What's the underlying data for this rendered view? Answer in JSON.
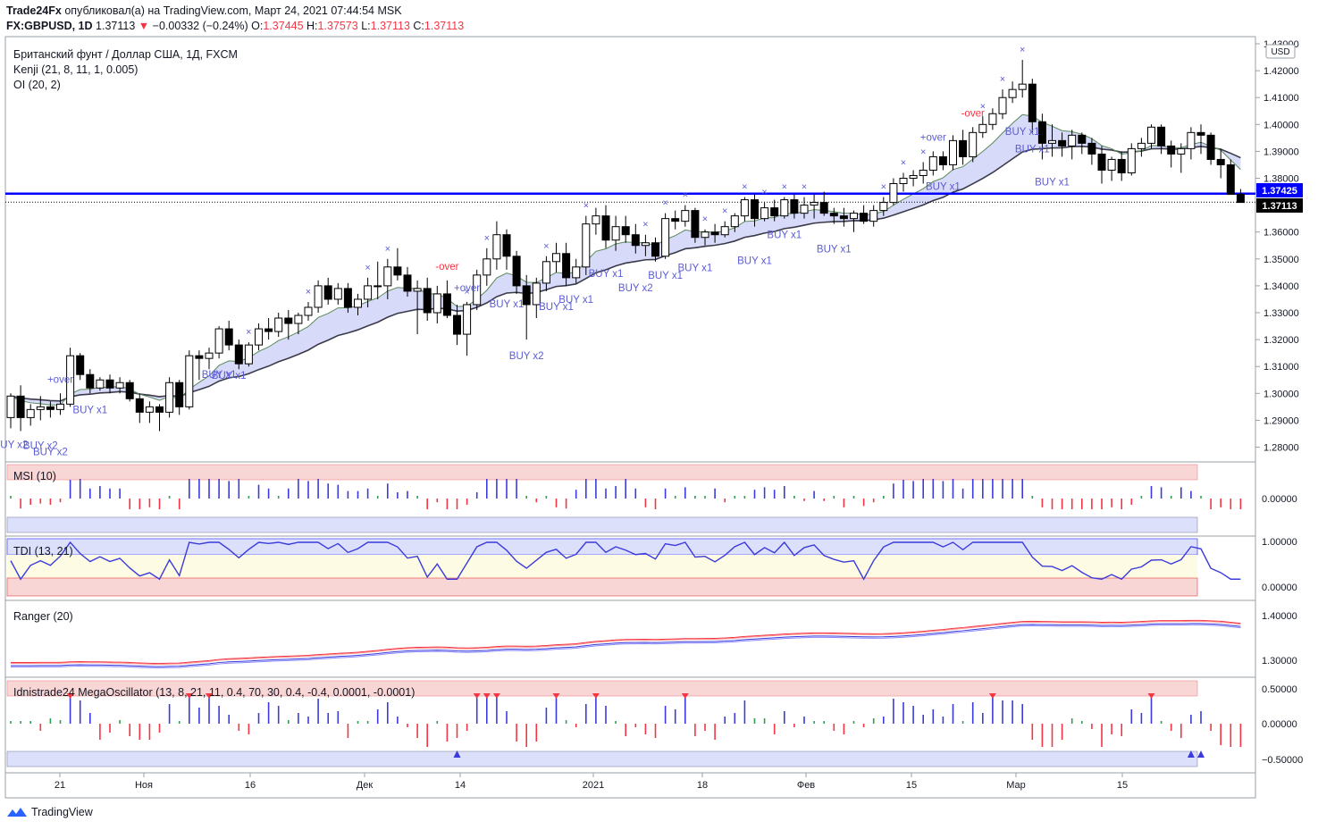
{
  "header": {
    "author": "Trade24Fx",
    "published_text": "опубликовал(а) на TradingView.com, Март 24, 2021 07:44:54 MSK",
    "symbol": "FX:GBPUSD, 1D",
    "last": "1.37113",
    "change": "−0.00332 (−0.24%)",
    "open_label": "O:",
    "open": "1.37445",
    "high_label": "H:",
    "high": "1.37573",
    "low_label": "L:",
    "low": "1.37113",
    "close_label": "C:",
    "close": "1.37113"
  },
  "legend": {
    "title": "Британский фунт / Доллар США, 1Д, FXCM",
    "kenji": "Kenji (21, 8, 11, 1, 0.005)",
    "oi": "OI (20, 2)"
  },
  "panes": {
    "msi": "MSI (10)",
    "tdi": "TDI (13, 21)",
    "ranger": "Ranger (20)",
    "mega": "Idnistrade24 MegaOscillator (13, 8, 21, 11, 0.4, 70, 30, 0.4, -0.4, 0.0001, -0.0001)"
  },
  "price_axis": {
    "currency": "USD",
    "ticks": [
      "1.43000",
      "1.42000",
      "1.41000",
      "1.40000",
      "1.39000",
      "1.38000",
      "1.36000",
      "1.35000",
      "1.34000",
      "1.33000",
      "1.32000",
      "1.31000",
      "1.30000",
      "1.29000",
      "1.28000"
    ],
    "level_label": "1.37425",
    "last_label": "1.37113"
  },
  "msi_axis": [
    "0.00000"
  ],
  "tdi_axis": [
    "1.00000",
    "0.00000"
  ],
  "ranger_axis": [
    "1.40000",
    "1.30000"
  ],
  "mega_axis": [
    "0.50000",
    "0.00000",
    "−0.50000"
  ],
  "time_axis": [
    "21",
    "Ноя",
    "16",
    "Дек",
    "14",
    "2021",
    "18",
    "Фев",
    "15",
    "Мар",
    "15"
  ],
  "signals": [
    "BUY x2",
    "BUY x2",
    "BUY x2",
    "BUY x1",
    "BUY x1",
    "+over",
    "BUY x1",
    "-over",
    "BUY x1",
    "BUY x2",
    "+over",
    "BUY x1",
    "BUY x1",
    "BUY x1",
    "BUY x2",
    "BUY x1",
    "BUY x1",
    "BUY x1",
    "BUY x1",
    "BUY x1",
    "+over",
    "BUY x1",
    "-over",
    "BUY x1",
    "BUY x1",
    "BUY x1"
  ],
  "brand": "TradingView",
  "colors": {
    "bull": "#ffffff",
    "bear": "#000000",
    "kenji_band": "#c9cdf5",
    "level": "#0000ff",
    "buy": "#5b5bd6",
    "red": "#f23645",
    "green": "#2e9e4f",
    "blue_bar": "#3b3bdb"
  },
  "chart_data": {
    "type": "candlestick",
    "title": "Британский фунт / Доллар США, 1Д, FXCM",
    "ylim": [
      1.275,
      1.432
    ],
    "level": 1.37425,
    "last": 1.37113,
    "candles": [
      [
        1.291,
        1.3,
        1.287,
        1.299
      ],
      [
        1.299,
        1.303,
        1.286,
        1.291
      ],
      [
        1.291,
        1.296,
        1.288,
        1.294
      ],
      [
        1.294,
        1.299,
        1.29,
        1.295
      ],
      [
        1.295,
        1.297,
        1.291,
        1.294
      ],
      [
        1.294,
        1.3,
        1.292,
        1.296
      ],
      [
        1.296,
        1.317,
        1.295,
        1.314
      ],
      [
        1.314,
        1.315,
        1.305,
        1.307
      ],
      [
        1.307,
        1.309,
        1.3,
        1.302
      ],
      [
        1.302,
        1.306,
        1.301,
        1.305
      ],
      [
        1.305,
        1.307,
        1.3,
        1.302
      ],
      [
        1.302,
        1.306,
        1.3,
        1.304
      ],
      [
        1.304,
        1.305,
        1.297,
        1.298
      ],
      [
        1.298,
        1.3,
        1.289,
        1.293
      ],
      [
        1.293,
        1.297,
        1.289,
        1.295
      ],
      [
        1.295,
        1.296,
        1.286,
        1.293
      ],
      [
        1.293,
        1.306,
        1.291,
        1.304
      ],
      [
        1.304,
        1.305,
        1.292,
        1.295
      ],
      [
        1.295,
        1.316,
        1.294,
        1.314
      ],
      [
        1.314,
        1.316,
        1.305,
        1.313
      ],
      [
        1.313,
        1.317,
        1.309,
        1.315
      ],
      [
        1.315,
        1.325,
        1.313,
        1.324
      ],
      [
        1.324,
        1.327,
        1.316,
        1.318
      ],
      [
        1.318,
        1.32,
        1.309,
        1.311
      ],
      [
        1.311,
        1.319,
        1.31,
        1.318
      ],
      [
        1.318,
        1.326,
        1.316,
        1.324
      ],
      [
        1.324,
        1.328,
        1.32,
        1.323
      ],
      [
        1.323,
        1.33,
        1.321,
        1.328
      ],
      [
        1.328,
        1.331,
        1.32,
        1.326
      ],
      [
        1.326,
        1.33,
        1.322,
        1.329
      ],
      [
        1.329,
        1.334,
        1.327,
        1.332
      ],
      [
        1.332,
        1.342,
        1.33,
        1.34
      ],
      [
        1.34,
        1.343,
        1.333,
        1.335
      ],
      [
        1.335,
        1.341,
        1.333,
        1.339
      ],
      [
        1.339,
        1.341,
        1.33,
        1.332
      ],
      [
        1.332,
        1.337,
        1.329,
        1.335
      ],
      [
        1.335,
        1.343,
        1.332,
        1.34
      ],
      [
        1.34,
        1.349,
        1.335,
        1.34
      ],
      [
        1.34,
        1.35,
        1.335,
        1.347
      ],
      [
        1.347,
        1.354,
        1.342,
        1.344
      ],
      [
        1.344,
        1.347,
        1.336,
        1.338
      ],
      [
        1.338,
        1.342,
        1.322,
        1.339
      ],
      [
        1.339,
        1.343,
        1.327,
        1.33
      ],
      [
        1.33,
        1.34,
        1.326,
        1.337
      ],
      [
        1.337,
        1.342,
        1.328,
        1.329
      ],
      [
        1.329,
        1.333,
        1.318,
        1.322
      ],
      [
        1.322,
        1.334,
        1.314,
        1.333
      ],
      [
        1.333,
        1.346,
        1.331,
        1.344
      ],
      [
        1.344,
        1.354,
        1.34,
        1.35
      ],
      [
        1.35,
        1.364,
        1.346,
        1.359
      ],
      [
        1.359,
        1.361,
        1.346,
        1.351
      ],
      [
        1.351,
        1.353,
        1.337,
        1.34
      ],
      [
        1.34,
        1.344,
        1.32,
        1.333
      ],
      [
        1.333,
        1.343,
        1.328,
        1.341
      ],
      [
        1.341,
        1.351,
        1.338,
        1.349
      ],
      [
        1.349,
        1.356,
        1.345,
        1.352
      ],
      [
        1.352,
        1.356,
        1.34,
        1.343
      ],
      [
        1.343,
        1.35,
        1.341,
        1.347
      ],
      [
        1.347,
        1.366,
        1.344,
        1.363
      ],
      [
        1.363,
        1.369,
        1.359,
        1.366
      ],
      [
        1.366,
        1.37,
        1.354,
        1.357
      ],
      [
        1.357,
        1.366,
        1.353,
        1.362
      ],
      [
        1.362,
        1.366,
        1.356,
        1.359
      ],
      [
        1.359,
        1.363,
        1.352,
        1.355
      ],
      [
        1.355,
        1.359,
        1.351,
        1.356
      ],
      [
        1.356,
        1.358,
        1.349,
        1.351
      ],
      [
        1.351,
        1.367,
        1.35,
        1.365
      ],
      [
        1.365,
        1.368,
        1.361,
        1.364
      ],
      [
        1.364,
        1.37,
        1.362,
        1.368
      ],
      [
        1.368,
        1.369,
        1.356,
        1.358
      ],
      [
        1.358,
        1.361,
        1.355,
        1.36
      ],
      [
        1.36,
        1.363,
        1.356,
        1.359
      ],
      [
        1.359,
        1.364,
        1.358,
        1.362
      ],
      [
        1.362,
        1.367,
        1.36,
        1.366
      ],
      [
        1.366,
        1.373,
        1.364,
        1.372
      ],
      [
        1.372,
        1.374,
        1.362,
        1.365
      ],
      [
        1.365,
        1.371,
        1.364,
        1.369
      ],
      [
        1.369,
        1.372,
        1.364,
        1.366
      ],
      [
        1.366,
        1.373,
        1.365,
        1.372
      ],
      [
        1.372,
        1.374,
        1.365,
        1.367
      ],
      [
        1.367,
        1.373,
        1.365,
        1.37
      ],
      [
        1.37,
        1.374,
        1.365,
        1.371
      ],
      [
        1.371,
        1.375,
        1.366,
        1.367
      ],
      [
        1.367,
        1.369,
        1.363,
        1.366
      ],
      [
        1.366,
        1.369,
        1.362,
        1.365
      ],
      [
        1.365,
        1.368,
        1.36,
        1.367
      ],
      [
        1.367,
        1.37,
        1.363,
        1.364
      ],
      [
        1.364,
        1.37,
        1.362,
        1.368
      ],
      [
        1.368,
        1.373,
        1.366,
        1.371
      ],
      [
        1.371,
        1.38,
        1.37,
        1.378
      ],
      [
        1.378,
        1.382,
        1.375,
        1.38
      ],
      [
        1.38,
        1.383,
        1.377,
        1.381
      ],
      [
        1.381,
        1.386,
        1.378,
        1.383
      ],
      [
        1.383,
        1.39,
        1.381,
        1.388
      ],
      [
        1.388,
        1.39,
        1.383,
        1.385
      ],
      [
        1.385,
        1.396,
        1.383,
        1.394
      ],
      [
        1.394,
        1.398,
        1.385,
        1.388
      ],
      [
        1.388,
        1.399,
        1.386,
        1.397
      ],
      [
        1.397,
        1.403,
        1.395,
        1.4
      ],
      [
        1.4,
        1.406,
        1.398,
        1.404
      ],
      [
        1.404,
        1.413,
        1.402,
        1.41
      ],
      [
        1.41,
        1.416,
        1.408,
        1.413
      ],
      [
        1.413,
        1.424,
        1.41,
        1.415
      ],
      [
        1.415,
        1.417,
        1.397,
        1.401
      ],
      [
        1.401,
        1.404,
        1.387,
        1.393
      ],
      [
        1.393,
        1.4,
        1.388,
        1.394
      ],
      [
        1.394,
        1.397,
        1.388,
        1.392
      ],
      [
        1.392,
        1.398,
        1.387,
        1.396
      ],
      [
        1.396,
        1.397,
        1.389,
        1.393
      ],
      [
        1.393,
        1.395,
        1.385,
        1.389
      ],
      [
        1.389,
        1.392,
        1.378,
        1.383
      ],
      [
        1.383,
        1.388,
        1.379,
        1.387
      ],
      [
        1.387,
        1.39,
        1.379,
        1.382
      ],
      [
        1.382,
        1.393,
        1.381,
        1.391
      ],
      [
        1.391,
        1.395,
        1.388,
        1.393
      ],
      [
        1.393,
        1.4,
        1.391,
        1.399
      ],
      [
        1.399,
        1.4,
        1.389,
        1.392
      ],
      [
        1.392,
        1.394,
        1.384,
        1.389
      ],
      [
        1.389,
        1.393,
        1.382,
        1.391
      ],
      [
        1.391,
        1.399,
        1.387,
        1.397
      ],
      [
        1.397,
        1.4,
        1.389,
        1.396
      ],
      [
        1.396,
        1.397,
        1.385,
        1.387
      ],
      [
        1.387,
        1.391,
        1.38,
        1.385
      ],
      [
        1.385,
        1.387,
        1.374,
        1.374
      ],
      [
        1.374,
        1.376,
        1.371,
        1.371
      ]
    ]
  }
}
